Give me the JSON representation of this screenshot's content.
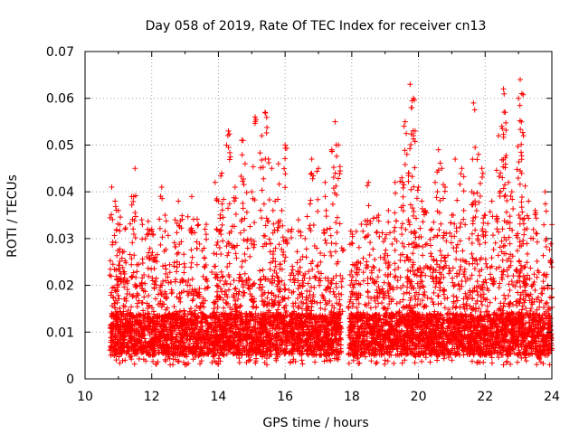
{
  "chart_data": {
    "type": "scatter",
    "title": "Day 058 of 2019, Rate Of TEC Index for receiver cn13",
    "xlabel": "GPS time / hours",
    "ylabel": "ROTI / TECUs",
    "xlim": [
      10,
      24
    ],
    "ylim": [
      0,
      0.07
    ],
    "xticks": [
      10,
      12,
      14,
      16,
      18,
      20,
      22,
      24
    ],
    "xtick_labels": [
      "10",
      "12",
      "14",
      "16",
      "18",
      "20",
      "22",
      "24"
    ],
    "yticks": [
      0,
      0.01,
      0.02,
      0.03,
      0.04,
      0.05,
      0.06,
      0.07
    ],
    "ytick_labels": [
      "0",
      "0.01",
      "0.02",
      "0.03",
      "0.04",
      "0.05",
      "0.06",
      "0.07"
    ],
    "grid": true,
    "marker": "+",
    "color": "#ff0000",
    "series": [
      {
        "name": "ROTI",
        "clusters": [
          {
            "x_from": 10.75,
            "x_to": 17.7,
            "y_base_from": 0.003,
            "y_base_to": 0.022
          },
          {
            "x_from": 17.9,
            "x_to": 24.0,
            "y_base_from": 0.003,
            "y_base_to": 0.024
          }
        ],
        "points": [
          [
            10.8,
            0.041
          ],
          [
            10.9,
            0.038
          ],
          [
            11.0,
            0.036
          ],
          [
            11.05,
            0.033
          ],
          [
            11.2,
            0.032
          ],
          [
            11.5,
            0.045
          ],
          [
            11.4,
            0.039
          ],
          [
            11.7,
            0.034
          ],
          [
            11.9,
            0.031
          ],
          [
            12.0,
            0.032
          ],
          [
            12.1,
            0.026
          ],
          [
            12.3,
            0.041
          ],
          [
            12.4,
            0.035
          ],
          [
            12.7,
            0.034
          ],
          [
            12.8,
            0.038
          ],
          [
            13.2,
            0.039
          ],
          [
            13.4,
            0.033
          ],
          [
            13.6,
            0.032
          ],
          [
            13.9,
            0.042
          ],
          [
            14.0,
            0.038
          ],
          [
            14.1,
            0.044
          ],
          [
            14.3,
            0.053
          ],
          [
            14.5,
            0.041
          ],
          [
            14.7,
            0.051
          ],
          [
            14.8,
            0.046
          ],
          [
            15.0,
            0.04
          ],
          [
            15.1,
            0.056
          ],
          [
            15.3,
            0.052
          ],
          [
            15.4,
            0.057
          ],
          [
            15.5,
            0.047
          ],
          [
            15.6,
            0.045
          ],
          [
            15.7,
            0.038
          ],
          [
            15.8,
            0.046
          ],
          [
            15.9,
            0.036
          ],
          [
            16.0,
            0.05
          ],
          [
            16.2,
            0.032
          ],
          [
            16.4,
            0.034
          ],
          [
            16.6,
            0.03
          ],
          [
            16.8,
            0.047
          ],
          [
            17.0,
            0.045
          ],
          [
            17.2,
            0.042
          ],
          [
            17.4,
            0.049
          ],
          [
            17.5,
            0.055
          ],
          [
            17.6,
            0.05
          ],
          [
            17.7,
            0.028
          ],
          [
            18.0,
            0.029
          ],
          [
            18.2,
            0.025
          ],
          [
            18.5,
            0.042
          ],
          [
            18.8,
            0.035
          ],
          [
            19.0,
            0.03
          ],
          [
            19.1,
            0.036
          ],
          [
            19.3,
            0.042
          ],
          [
            19.5,
            0.043
          ],
          [
            19.6,
            0.055
          ],
          [
            19.7,
            0.044
          ],
          [
            19.75,
            0.063
          ],
          [
            19.8,
            0.058
          ],
          [
            19.85,
            0.06
          ],
          [
            19.9,
            0.053
          ],
          [
            20.0,
            0.041
          ],
          [
            20.1,
            0.038
          ],
          [
            20.2,
            0.036
          ],
          [
            20.4,
            0.032
          ],
          [
            20.5,
            0.042
          ],
          [
            20.6,
            0.049
          ],
          [
            20.7,
            0.045
          ],
          [
            20.8,
            0.041
          ],
          [
            21.0,
            0.035
          ],
          [
            21.1,
            0.047
          ],
          [
            21.3,
            0.045
          ],
          [
            21.4,
            0.033
          ],
          [
            21.6,
            0.04
          ],
          [
            21.65,
            0.059
          ],
          [
            21.8,
            0.048
          ],
          [
            21.9,
            0.045
          ],
          [
            22.0,
            0.035
          ],
          [
            22.2,
            0.038
          ],
          [
            22.4,
            0.052
          ],
          [
            22.5,
            0.054
          ],
          [
            22.55,
            0.062
          ],
          [
            22.6,
            0.057
          ],
          [
            22.7,
            0.042
          ],
          [
            22.8,
            0.04
          ],
          [
            23.0,
            0.06
          ],
          [
            23.05,
            0.064
          ],
          [
            23.1,
            0.061
          ],
          [
            23.15,
            0.052
          ],
          [
            23.3,
            0.038
          ],
          [
            23.5,
            0.036
          ],
          [
            23.8,
            0.04
          ],
          [
            24.0,
            0.033
          ],
          [
            22.55,
            0.003
          ],
          [
            11.2,
            0.004
          ],
          [
            13.0,
            0.003
          ],
          [
            16.5,
            0.004
          ],
          [
            19.0,
            0.004
          ],
          [
            21.0,
            0.004
          ],
          [
            23.6,
            0.005
          ]
        ]
      }
    ]
  }
}
